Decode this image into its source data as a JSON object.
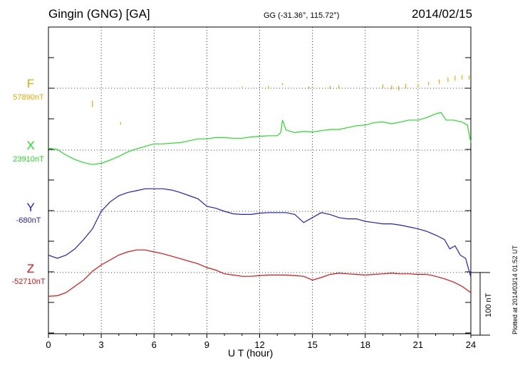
{
  "header": {
    "station": "Gingin (GNG)  [GA]",
    "coords": "GG (-31.36°, 115.72°)",
    "date": "2014/02/15"
  },
  "components": [
    {
      "name": "F",
      "baseline": "57890nT",
      "color": "#f0a800"
    },
    {
      "name": "X",
      "baseline": "23910nT",
      "color": "#22dd22"
    },
    {
      "name": "Y",
      "baseline": "-680nT",
      "color": "#1f1fd0"
    },
    {
      "name": "Z",
      "baseline": "-52710nT",
      "color": "#e01010"
    }
  ],
  "footer": {
    "xlabel": "U T (hour)",
    "scale": "100 nT",
    "plotted": "Plotted at 2014/03/14 01:52 UT"
  },
  "chart_data": {
    "type": "line",
    "xlabel": "U T (hour)",
    "xlim": [
      0,
      24
    ],
    "xticks": [
      0,
      3,
      6,
      9,
      12,
      15,
      18,
      21,
      24
    ],
    "scale_bar_nT": 100,
    "grid": true,
    "series": [
      {
        "name": "F",
        "baseline_nT": 57890,
        "segments": [
          {
            "x": [
              2.5,
              2.5
            ],
            "y": [
              -20,
              -30
            ]
          },
          {
            "x": [
              4.1,
              4.1
            ],
            "y": [
              -54,
              -58
            ]
          },
          {
            "x": [
              11.0,
              11.0
            ],
            "y": [
              1,
              3
            ]
          },
          {
            "x": [
              12.5,
              12.5
            ],
            "y": [
              -1,
              4
            ]
          },
          {
            "x": [
              13.3,
              13.3
            ],
            "y": [
              5,
              8
            ]
          },
          {
            "x": [
              14.8,
              14.8
            ],
            "y": [
              -1,
              3
            ]
          },
          {
            "x": [
              16.0,
              16.0
            ],
            "y": [
              -1,
              4
            ]
          },
          {
            "x": [
              16.5,
              16.5
            ],
            "y": [
              0,
              5
            ]
          },
          {
            "x": [
              19.0,
              19.0
            ],
            "y": [
              0,
              6
            ]
          },
          {
            "x": [
              19.5,
              19.5
            ],
            "y": [
              -2,
              5
            ]
          },
          {
            "x": [
              19.9,
              19.9
            ],
            "y": [
              -4,
              4
            ]
          },
          {
            "x": [
              20.3,
              20.3
            ],
            "y": [
              0,
              7
            ]
          },
          {
            "x": [
              21.0,
              21.0
            ],
            "y": [
              1,
              7
            ]
          },
          {
            "x": [
              21.6,
              21.6
            ],
            "y": [
              5,
              10
            ]
          },
          {
            "x": [
              22.2,
              22.2
            ],
            "y": [
              7,
              14
            ]
          },
          {
            "x": [
              22.7,
              22.7
            ],
            "y": [
              10,
              17
            ]
          },
          {
            "x": [
              23.1,
              23.1
            ],
            "y": [
              12,
              20
            ]
          },
          {
            "x": [
              23.5,
              23.5
            ],
            "y": [
              14,
              21
            ]
          },
          {
            "x": [
              23.9,
              23.9
            ],
            "y": [
              14,
              20
            ]
          }
        ]
      },
      {
        "name": "X",
        "baseline_nT": 23910,
        "x": [
          0,
          0.5,
          1,
          1.5,
          2,
          2.5,
          3,
          3.5,
          4,
          4.5,
          5,
          5.5,
          6,
          6.5,
          7,
          7.5,
          8,
          8.5,
          9,
          9.5,
          10,
          10.5,
          11,
          11.5,
          12,
          12.5,
          13,
          13.2,
          13.3,
          13.5,
          14,
          14.5,
          15,
          15.5,
          16,
          16.5,
          17,
          17.5,
          18,
          18.5,
          19,
          19.5,
          20,
          20.5,
          21,
          21.5,
          22,
          22.3,
          22.6,
          23,
          23.5,
          23.8,
          24
        ],
        "y": [
          3,
          1,
          -8,
          -15,
          -20,
          -23,
          -21,
          -16,
          -10,
          -3,
          2,
          6,
          10,
          10,
          11,
          12,
          15,
          18,
          18,
          20,
          20,
          19,
          19,
          21,
          22,
          23,
          23,
          28,
          48,
          32,
          28,
          30,
          29,
          31,
          33,
          33,
          36,
          39,
          40,
          44,
          45,
          42,
          45,
          48,
          48,
          52,
          58,
          60,
          48,
          48,
          45,
          40,
          12
        ]
      },
      {
        "name": "Y",
        "baseline_nT": -680,
        "x": [
          0,
          0.5,
          1,
          1.5,
          2,
          2.5,
          3,
          3.5,
          4,
          4.5,
          5,
          5.5,
          6,
          6.5,
          7,
          7.5,
          8,
          8.5,
          9,
          9.5,
          10,
          10.5,
          11,
          11.5,
          12,
          12.5,
          13,
          13.5,
          14,
          14.5,
          15,
          15.5,
          16,
          16.5,
          17,
          17.5,
          18,
          18.5,
          19,
          19.5,
          20,
          20.5,
          21,
          21.5,
          22,
          22.5,
          22.8,
          23.1,
          23.4,
          23.7,
          24
        ],
        "y": [
          -70,
          -75,
          -70,
          -60,
          -45,
          -28,
          0,
          15,
          25,
          30,
          33,
          36,
          36,
          36,
          34,
          30,
          25,
          20,
          8,
          5,
          0,
          -4,
          -5,
          -5,
          -3,
          -2,
          -2,
          -2,
          -5,
          -18,
          -10,
          -2,
          -5,
          -10,
          -12,
          -12,
          -16,
          -18,
          -20,
          -20,
          -22,
          -25,
          -28,
          -32,
          -38,
          -45,
          -60,
          -55,
          -70,
          -75,
          -105
        ]
      },
      {
        "name": "Z",
        "baseline_nT": -52710,
        "x": [
          0,
          0.5,
          1,
          1.5,
          2,
          2.5,
          3,
          3.5,
          4,
          4.5,
          5,
          5.5,
          6,
          6.5,
          7,
          7.5,
          8,
          8.5,
          9,
          9.5,
          10,
          10.5,
          11,
          11.5,
          12,
          12.5,
          13,
          13.5,
          14,
          14.5,
          15,
          15.5,
          16,
          16.5,
          17,
          17.5,
          18,
          18.5,
          19,
          19.5,
          20,
          20.5,
          21,
          21.5,
          22,
          22.5,
          23,
          23.5,
          24
        ],
        "y": [
          -38,
          -37,
          -32,
          -22,
          -12,
          2,
          12,
          20,
          28,
          33,
          36,
          36,
          33,
          30,
          26,
          22,
          18,
          14,
          8,
          4,
          -2,
          -4,
          -6,
          -6,
          -5,
          -4,
          -4,
          -4,
          -5,
          -6,
          -12,
          -8,
          -3,
          -1,
          -2,
          -3,
          -4,
          -3,
          -2,
          -1,
          -2,
          -2,
          -3,
          -3,
          -6,
          -10,
          -15,
          -22,
          -32
        ]
      }
    ]
  }
}
